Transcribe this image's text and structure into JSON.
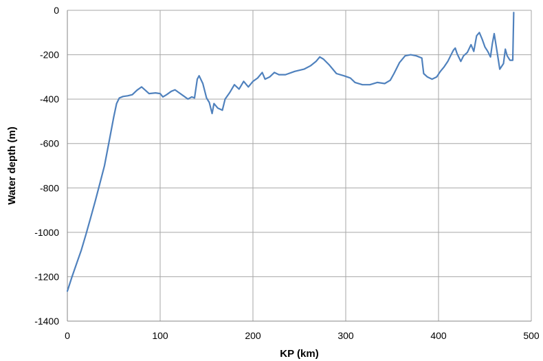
{
  "chart_data": {
    "type": "line",
    "title": "",
    "xlabel": "KP (km)",
    "ylabel": "Water depth (m)",
    "xlim": [
      0,
      500
    ],
    "ylim": [
      -1400,
      0
    ],
    "x_ticks": [
      0,
      100,
      200,
      300,
      400,
      500
    ],
    "x_tick_labels": [
      "0",
      "100",
      "200",
      "300",
      "400",
      "500"
    ],
    "y_ticks": [
      0,
      -200,
      -400,
      -600,
      -800,
      -1000,
      -1200,
      -1400
    ],
    "y_tick_labels": [
      "0",
      "-200",
      "-400",
      "-600",
      "-800",
      "-1000",
      "-1200",
      "-1400"
    ],
    "grid": true,
    "legend": "none",
    "series": [
      {
        "color": "#4f81bd",
        "points": [
          [
            0,
            -1265
          ],
          [
            5,
            -1200
          ],
          [
            10,
            -1140
          ],
          [
            15,
            -1080
          ],
          [
            20,
            -1010
          ],
          [
            25,
            -935
          ],
          [
            30,
            -860
          ],
          [
            35,
            -780
          ],
          [
            40,
            -700
          ],
          [
            45,
            -590
          ],
          [
            50,
            -480
          ],
          [
            53,
            -420
          ],
          [
            56,
            -395
          ],
          [
            60,
            -388
          ],
          [
            65,
            -385
          ],
          [
            70,
            -380
          ],
          [
            75,
            -360
          ],
          [
            80,
            -345
          ],
          [
            84,
            -360
          ],
          [
            88,
            -375
          ],
          [
            95,
            -372
          ],
          [
            100,
            -375
          ],
          [
            103,
            -390
          ],
          [
            107,
            -380
          ],
          [
            112,
            -365
          ],
          [
            116,
            -358
          ],
          [
            120,
            -370
          ],
          [
            125,
            -385
          ],
          [
            130,
            -400
          ],
          [
            134,
            -390
          ],
          [
            137,
            -395
          ],
          [
            140,
            -310
          ],
          [
            142,
            -295
          ],
          [
            146,
            -330
          ],
          [
            150,
            -395
          ],
          [
            153,
            -415
          ],
          [
            156,
            -465
          ],
          [
            158,
            -420
          ],
          [
            162,
            -440
          ],
          [
            167,
            -450
          ],
          [
            170,
            -400
          ],
          [
            175,
            -370
          ],
          [
            180,
            -335
          ],
          [
            185,
            -355
          ],
          [
            190,
            -320
          ],
          [
            195,
            -345
          ],
          [
            200,
            -320
          ],
          [
            205,
            -305
          ],
          [
            210,
            -280
          ],
          [
            213,
            -310
          ],
          [
            218,
            -300
          ],
          [
            223,
            -280
          ],
          [
            228,
            -290
          ],
          [
            235,
            -290
          ],
          [
            245,
            -275
          ],
          [
            255,
            -265
          ],
          [
            262,
            -250
          ],
          [
            268,
            -230
          ],
          [
            272,
            -210
          ],
          [
            276,
            -220
          ],
          [
            282,
            -245
          ],
          [
            290,
            -285
          ],
          [
            298,
            -295
          ],
          [
            305,
            -305
          ],
          [
            310,
            -325
          ],
          [
            318,
            -335
          ],
          [
            326,
            -335
          ],
          [
            334,
            -325
          ],
          [
            342,
            -330
          ],
          [
            348,
            -315
          ],
          [
            352,
            -285
          ],
          [
            358,
            -235
          ],
          [
            364,
            -205
          ],
          [
            370,
            -200
          ],
          [
            376,
            -205
          ],
          [
            382,
            -215
          ],
          [
            384,
            -285
          ],
          [
            388,
            -300
          ],
          [
            393,
            -310
          ],
          [
            398,
            -300
          ],
          [
            402,
            -275
          ],
          [
            406,
            -255
          ],
          [
            410,
            -230
          ],
          [
            413,
            -205
          ],
          [
            416,
            -180
          ],
          [
            418,
            -170
          ],
          [
            420,
            -195
          ],
          [
            424,
            -230
          ],
          [
            427,
            -205
          ],
          [
            431,
            -190
          ],
          [
            435,
            -155
          ],
          [
            438,
            -185
          ],
          [
            441,
            -115
          ],
          [
            444,
            -100
          ],
          [
            447,
            -130
          ],
          [
            450,
            -165
          ],
          [
            453,
            -185
          ],
          [
            456,
            -210
          ],
          [
            458,
            -150
          ],
          [
            460,
            -105
          ],
          [
            463,
            -185
          ],
          [
            466,
            -265
          ],
          [
            470,
            -240
          ],
          [
            472,
            -175
          ],
          [
            474,
            -205
          ],
          [
            477,
            -225
          ],
          [
            480,
            -225
          ],
          [
            481,
            -10
          ]
        ]
      }
    ]
  }
}
